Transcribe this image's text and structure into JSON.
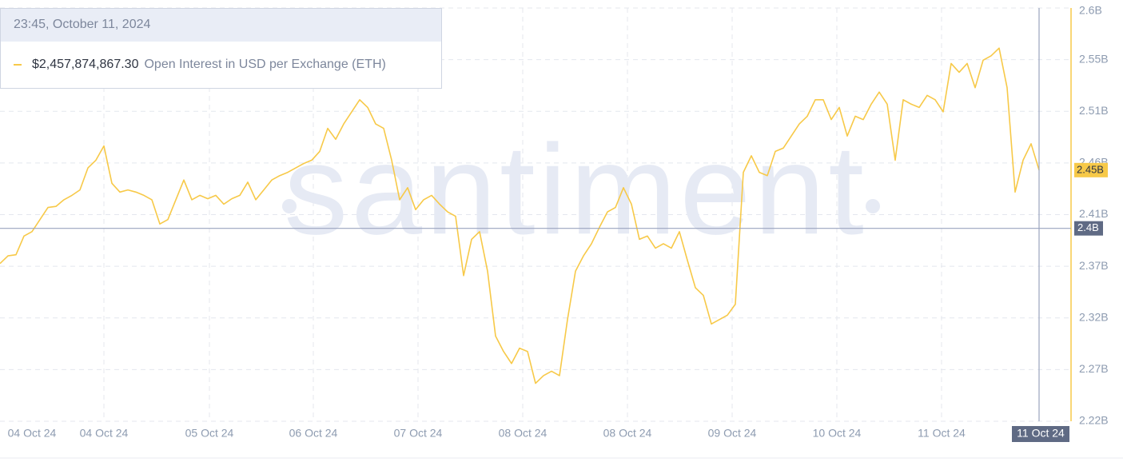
{
  "chart_data": {
    "type": "line",
    "tooltip": {
      "title": "23:45, October 11, 2024",
      "value": "$2,457,874,867.30"
    },
    "watermark": "santiment",
    "x": [
      0,
      1,
      2,
      3,
      4,
      5,
      6,
      7,
      8,
      9,
      10,
      11,
      12,
      13,
      14,
      15,
      16,
      17,
      18,
      19,
      20,
      21,
      22,
      23,
      24,
      25,
      26,
      27,
      28,
      29,
      30,
      31,
      32,
      33,
      34,
      35,
      36,
      37,
      38,
      39,
      40,
      41,
      42,
      43,
      44,
      45,
      46,
      47,
      48,
      49,
      50,
      51,
      52,
      53,
      54,
      55,
      56,
      57,
      58,
      59,
      60,
      61,
      62,
      63,
      64,
      65,
      66,
      67,
      68,
      69,
      70,
      71,
      72,
      73,
      74,
      75,
      76,
      77,
      78,
      79,
      80,
      81,
      82,
      83,
      84,
      85,
      86,
      87,
      88,
      89,
      90,
      91,
      92,
      93,
      94,
      95,
      96,
      97,
      98,
      99,
      100,
      101,
      102,
      103,
      104,
      105,
      106,
      107,
      108,
      109,
      110,
      111,
      112,
      113,
      114,
      115,
      116,
      117,
      118,
      119,
      120,
      121,
      122,
      123,
      124,
      125,
      126,
      127,
      128,
      129,
      130
    ],
    "xlim": [
      0,
      134
    ],
    "xticks": [
      {
        "value": 4,
        "label": "04 Oct 24"
      },
      {
        "value": 13,
        "label": "04 Oct 24"
      },
      {
        "value": 26.2,
        "label": "05 Oct 24"
      },
      {
        "value": 39.2,
        "label": "06 Oct 24"
      },
      {
        "value": 52.3,
        "label": "07 Oct 24"
      },
      {
        "value": 65.4,
        "label": "08 Oct 24"
      },
      {
        "value": 78.5,
        "label": "08 Oct 24"
      },
      {
        "value": 91.6,
        "label": "09 Oct 24"
      },
      {
        "value": 104.7,
        "label": "10 Oct 24"
      },
      {
        "value": 117.8,
        "label": "11 Oct 24"
      }
    ],
    "series": [
      {
        "name": "Open Interest in USD per Exchange (ETH)",
        "color": "#f7c948",
        "values": [
          2.368,
          2.375,
          2.376,
          2.393,
          2.397,
          2.408,
          2.419,
          2.42,
          2.426,
          2.43,
          2.435,
          2.455,
          2.462,
          2.475,
          2.441,
          2.433,
          2.435,
          2.433,
          2.43,
          2.426,
          2.404,
          2.408,
          2.426,
          2.444,
          2.426,
          2.43,
          2.427,
          2.43,
          2.422,
          2.427,
          2.43,
          2.442,
          2.426,
          2.435,
          2.444,
          2.448,
          2.451,
          2.455,
          2.459,
          2.462,
          2.47,
          2.491,
          2.481,
          2.495,
          2.506,
          2.517,
          2.51,
          2.495,
          2.491,
          2.462,
          2.426,
          2.437,
          2.417,
          2.426,
          2.43,
          2.422,
          2.415,
          2.411,
          2.357,
          2.39,
          2.397,
          2.361,
          2.302,
          2.288,
          2.277,
          2.291,
          2.288,
          2.259,
          2.266,
          2.27,
          2.266,
          2.317,
          2.361,
          2.375,
          2.386,
          2.401,
          2.415,
          2.419,
          2.437,
          2.422,
          2.39,
          2.393,
          2.382,
          2.386,
          2.382,
          2.397,
          2.371,
          2.346,
          2.339,
          2.313,
          2.317,
          2.321,
          2.331,
          2.451,
          2.466,
          2.451,
          2.448,
          2.47,
          2.473,
          2.484,
          2.495,
          2.502,
          2.517,
          2.517,
          2.499,
          2.51,
          2.484,
          2.502,
          2.499,
          2.513,
          2.524,
          2.513,
          2.462,
          2.517,
          2.513,
          2.51,
          2.521,
          2.517,
          2.506,
          2.55,
          2.542,
          2.55,
          2.528,
          2.553,
          2.557,
          2.564,
          2.528,
          2.433,
          2.462,
          2.477,
          2.453
        ]
      }
    ],
    "ylim": [
      2.2245,
      2.6005
    ],
    "yticks": [
      {
        "value": 2.2245,
        "label": "2.22B"
      },
      {
        "value": 2.2715,
        "label": "2.27B"
      },
      {
        "value": 2.3185,
        "label": "2.32B"
      },
      {
        "value": 2.3655,
        "label": "2.37B"
      },
      {
        "value": 2.4125,
        "label": "2.41B"
      },
      {
        "value": 2.4595,
        "label": "2.46B"
      },
      {
        "value": 2.5065,
        "label": "2.51B"
      },
      {
        "value": 2.5535,
        "label": "2.55B"
      },
      {
        "value": 2.6005,
        "label": "2.6B"
      }
    ],
    "grid": true,
    "crosshair": {
      "x": {
        "value": 130,
        "label": "11 Oct 24"
      },
      "y": {
        "value": 2.4,
        "label": "2.4B"
      }
    },
    "last_value_label": "2.45B"
  }
}
